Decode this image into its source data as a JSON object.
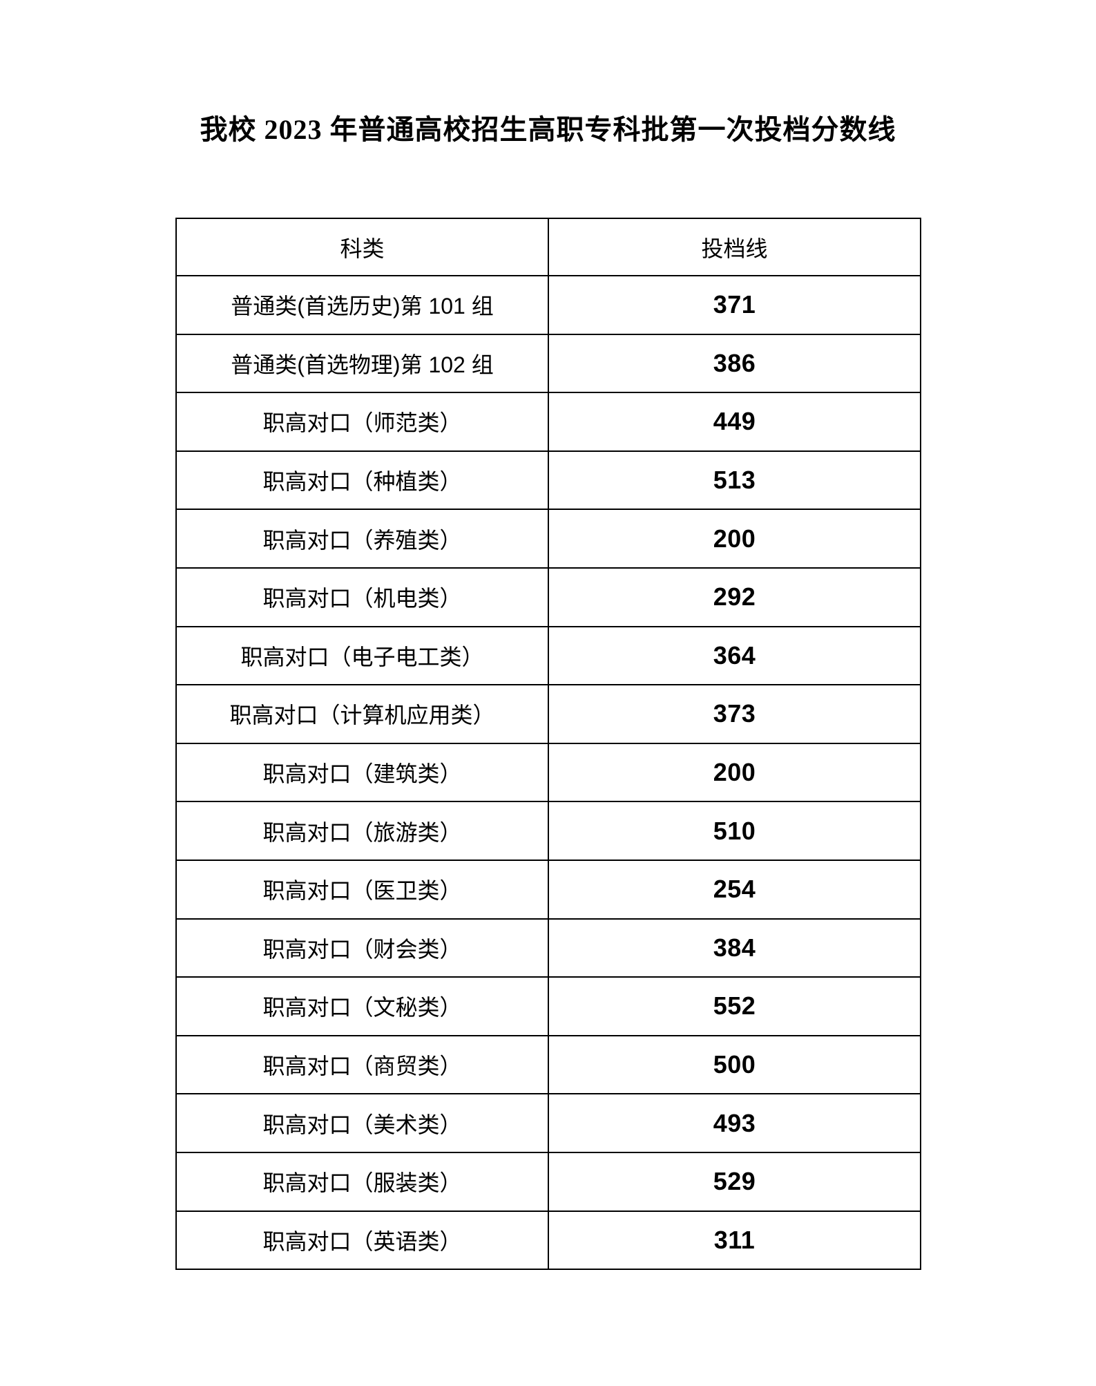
{
  "page": {
    "title": "我校 2023 年普通高校招生高职专科批第一次投档分数线"
  },
  "table": {
    "columns": [
      "科类",
      "投档线"
    ],
    "rows": [
      {
        "category": "普通类(首选历史)第 101 组",
        "score": 371
      },
      {
        "category": "普通类(首选物理)第 102 组",
        "score": 386
      },
      {
        "category": "职高对口（师范类）",
        "score": 449
      },
      {
        "category": "职高对口（种植类）",
        "score": 513
      },
      {
        "category": "职高对口（养殖类）",
        "score": 200
      },
      {
        "category": "职高对口（机电类）",
        "score": 292
      },
      {
        "category": "职高对口（电子电工类）",
        "score": 364
      },
      {
        "category": "职高对口（计算机应用类）",
        "score": 373
      },
      {
        "category": "职高对口（建筑类）",
        "score": 200
      },
      {
        "category": "职高对口（旅游类）",
        "score": 510
      },
      {
        "category": "职高对口（医卫类）",
        "score": 254
      },
      {
        "category": "职高对口（财会类）",
        "score": 384
      },
      {
        "category": "职高对口（文秘类）",
        "score": 552
      },
      {
        "category": "职高对口（商贸类）",
        "score": 500
      },
      {
        "category": "职高对口（美术类）",
        "score": 493
      },
      {
        "category": "职高对口（服装类）",
        "score": 529
      },
      {
        "category": "职高对口（英语类）",
        "score": 311
      }
    ]
  }
}
